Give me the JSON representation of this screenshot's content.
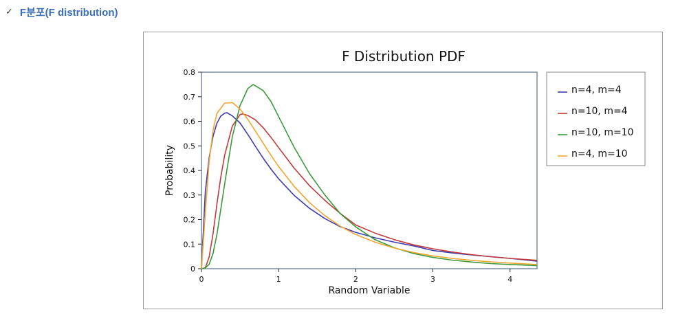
{
  "heading": {
    "check_mark": "✓",
    "text": "F분포(F distribution)"
  },
  "colors": {
    "heading": "#3b6fb6",
    "axes_frame": "#7a8ea0"
  },
  "chart_data": {
    "type": "line",
    "title": "F Distribution PDF",
    "xlabel": "Random Variable",
    "ylabel": "Probability",
    "xlim": [
      0,
      4.35
    ],
    "ylim": [
      0,
      0.8
    ],
    "xticks": [
      0,
      1,
      2,
      3,
      4
    ],
    "yticks": [
      0,
      0.1,
      0.2,
      0.3,
      0.4,
      0.5,
      0.6,
      0.7,
      0.8
    ],
    "grid": false,
    "legend_position": "right",
    "series": [
      {
        "name": "n=4, m=4",
        "color": "#3d3bb0",
        "x": [
          0,
          0.05,
          0.1,
          0.15,
          0.2,
          0.25,
          0.3,
          0.33,
          0.4,
          0.5,
          0.6,
          0.7,
          0.8,
          0.9,
          1.0,
          1.2,
          1.4,
          1.6,
          1.8,
          2.0,
          2.25,
          2.5,
          2.75,
          3.0,
          3.25,
          3.5,
          3.75,
          4.0,
          4.35
        ],
        "y": [
          0,
          0.314,
          0.452,
          0.539,
          0.592,
          0.621,
          0.633,
          0.635,
          0.622,
          0.593,
          0.547,
          0.498,
          0.45,
          0.406,
          0.366,
          0.299,
          0.246,
          0.204,
          0.171,
          0.148,
          0.126,
          0.108,
          0.093,
          0.074,
          0.064,
          0.056,
          0.049,
          0.042,
          0.031
        ]
      },
      {
        "name": "n=10, m=4",
        "color": "#c0393b",
        "x": [
          0,
          0.05,
          0.1,
          0.15,
          0.2,
          0.25,
          0.3,
          0.4,
          0.5,
          0.53,
          0.6,
          0.7,
          0.8,
          0.9,
          1.0,
          1.2,
          1.4,
          1.6,
          1.8,
          2.0,
          2.25,
          2.5,
          2.75,
          3.0,
          3.25,
          3.5,
          3.75,
          4.0,
          4.35
        ],
        "y": [
          0,
          0.004,
          0.048,
          0.142,
          0.262,
          0.371,
          0.462,
          0.581,
          0.627,
          0.63,
          0.624,
          0.606,
          0.574,
          0.535,
          0.493,
          0.41,
          0.338,
          0.278,
          0.225,
          0.178,
          0.145,
          0.118,
          0.097,
          0.081,
          0.068,
          0.057,
          0.049,
          0.042,
          0.034
        ]
      },
      {
        "name": "n=10, m=10",
        "color": "#3a9a3a",
        "x": [
          0,
          0.05,
          0.1,
          0.15,
          0.2,
          0.3,
          0.4,
          0.5,
          0.6,
          0.67,
          0.8,
          0.9,
          1.0,
          1.2,
          1.4,
          1.6,
          1.8,
          2.0,
          2.25,
          2.5,
          2.75,
          3.0,
          3.25,
          3.5,
          3.75,
          4.0,
          4.35
        ],
        "y": [
          0,
          0.003,
          0.018,
          0.062,
          0.138,
          0.345,
          0.538,
          0.664,
          0.733,
          0.75,
          0.725,
          0.681,
          0.619,
          0.495,
          0.387,
          0.3,
          0.224,
          0.17,
          0.118,
          0.085,
          0.062,
          0.046,
          0.035,
          0.027,
          0.021,
          0.017,
          0.013
        ]
      },
      {
        "name": "n=4, m=10",
        "color": "#f2a531",
        "x": [
          0,
          0.05,
          0.1,
          0.15,
          0.2,
          0.3,
          0.4,
          0.5,
          0.6,
          0.7,
          0.8,
          0.9,
          1.0,
          1.2,
          1.4,
          1.6,
          1.8,
          2.0,
          2.25,
          2.5,
          2.75,
          3.0,
          3.25,
          3.5,
          3.75,
          4.0,
          4.35
        ],
        "y": [
          0,
          0.23,
          0.437,
          0.562,
          0.632,
          0.674,
          0.676,
          0.65,
          0.608,
          0.56,
          0.511,
          0.462,
          0.416,
          0.336,
          0.269,
          0.216,
          0.173,
          0.139,
          0.108,
          0.084,
          0.066,
          0.052,
          0.042,
          0.034,
          0.028,
          0.023,
          0.017
        ]
      }
    ]
  }
}
